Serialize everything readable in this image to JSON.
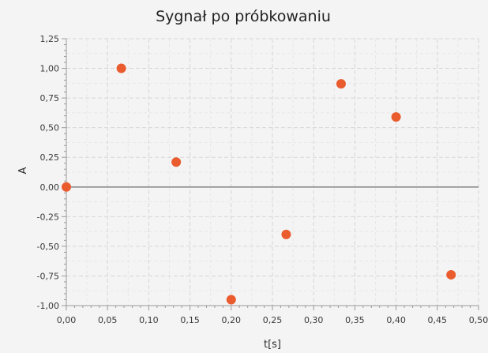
{
  "chart_data": {
    "type": "scatter",
    "title": "Sygnał po próbkowaniu",
    "xlabel": "t[s]",
    "ylabel": "A",
    "xlim": [
      0,
      0.5
    ],
    "ylim": [
      -1,
      1.25
    ],
    "x_ticks": [
      "0,00",
      "0,05",
      "0,10",
      "0,15",
      "0,20",
      "0,25",
      "0,30",
      "0,35",
      "0,40",
      "0,45",
      "0,50"
    ],
    "y_ticks": [
      "1,25",
      "1,00",
      "0,75",
      "0,50",
      "0,25",
      "0,00",
      "-0,25",
      "-0,50",
      "-0,75",
      "-1,00"
    ],
    "grid": true,
    "legend": "none",
    "marker_color": "#ea5b2e",
    "series": [
      {
        "x": [
          0.0,
          0.0667,
          0.1333,
          0.2,
          0.2667,
          0.3333,
          0.4,
          0.4667
        ],
        "y": [
          0.0,
          1.0,
          0.21,
          -0.95,
          -0.4,
          0.87,
          0.59,
          -0.74
        ]
      }
    ]
  }
}
